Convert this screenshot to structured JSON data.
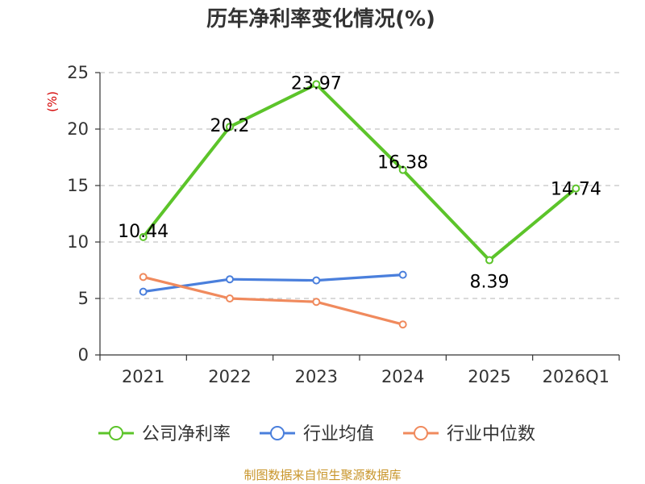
{
  "chart_data": {
    "type": "line",
    "title": "历年净利率变化情况(%)",
    "ylabel": "(%)",
    "xlabel": "",
    "categories": [
      "2021",
      "2022",
      "2023",
      "2024",
      "2025",
      "2026Q1"
    ],
    "ylim": [
      0,
      25
    ],
    "yticks": [
      0,
      5,
      10,
      15,
      20,
      25
    ],
    "grid": true,
    "legend_position": "bottom",
    "series": [
      {
        "name": "公司净利率",
        "color": "#5cc42a",
        "values": [
          10.44,
          20.2,
          23.97,
          16.38,
          8.39,
          14.74
        ],
        "labels": [
          "10.44",
          "20.2",
          "23.97",
          "16.38",
          "8.39",
          "14.74"
        ]
      },
      {
        "name": "行业均值",
        "color": "#4a7fdc",
        "values": [
          5.6,
          6.7,
          6.6,
          7.1,
          null,
          null
        ]
      },
      {
        "name": "行业中位数",
        "color": "#f08a5d",
        "values": [
          6.9,
          5.0,
          4.7,
          2.7,
          null,
          null
        ]
      }
    ],
    "source": "制图数据来自恒生聚源数据库"
  }
}
